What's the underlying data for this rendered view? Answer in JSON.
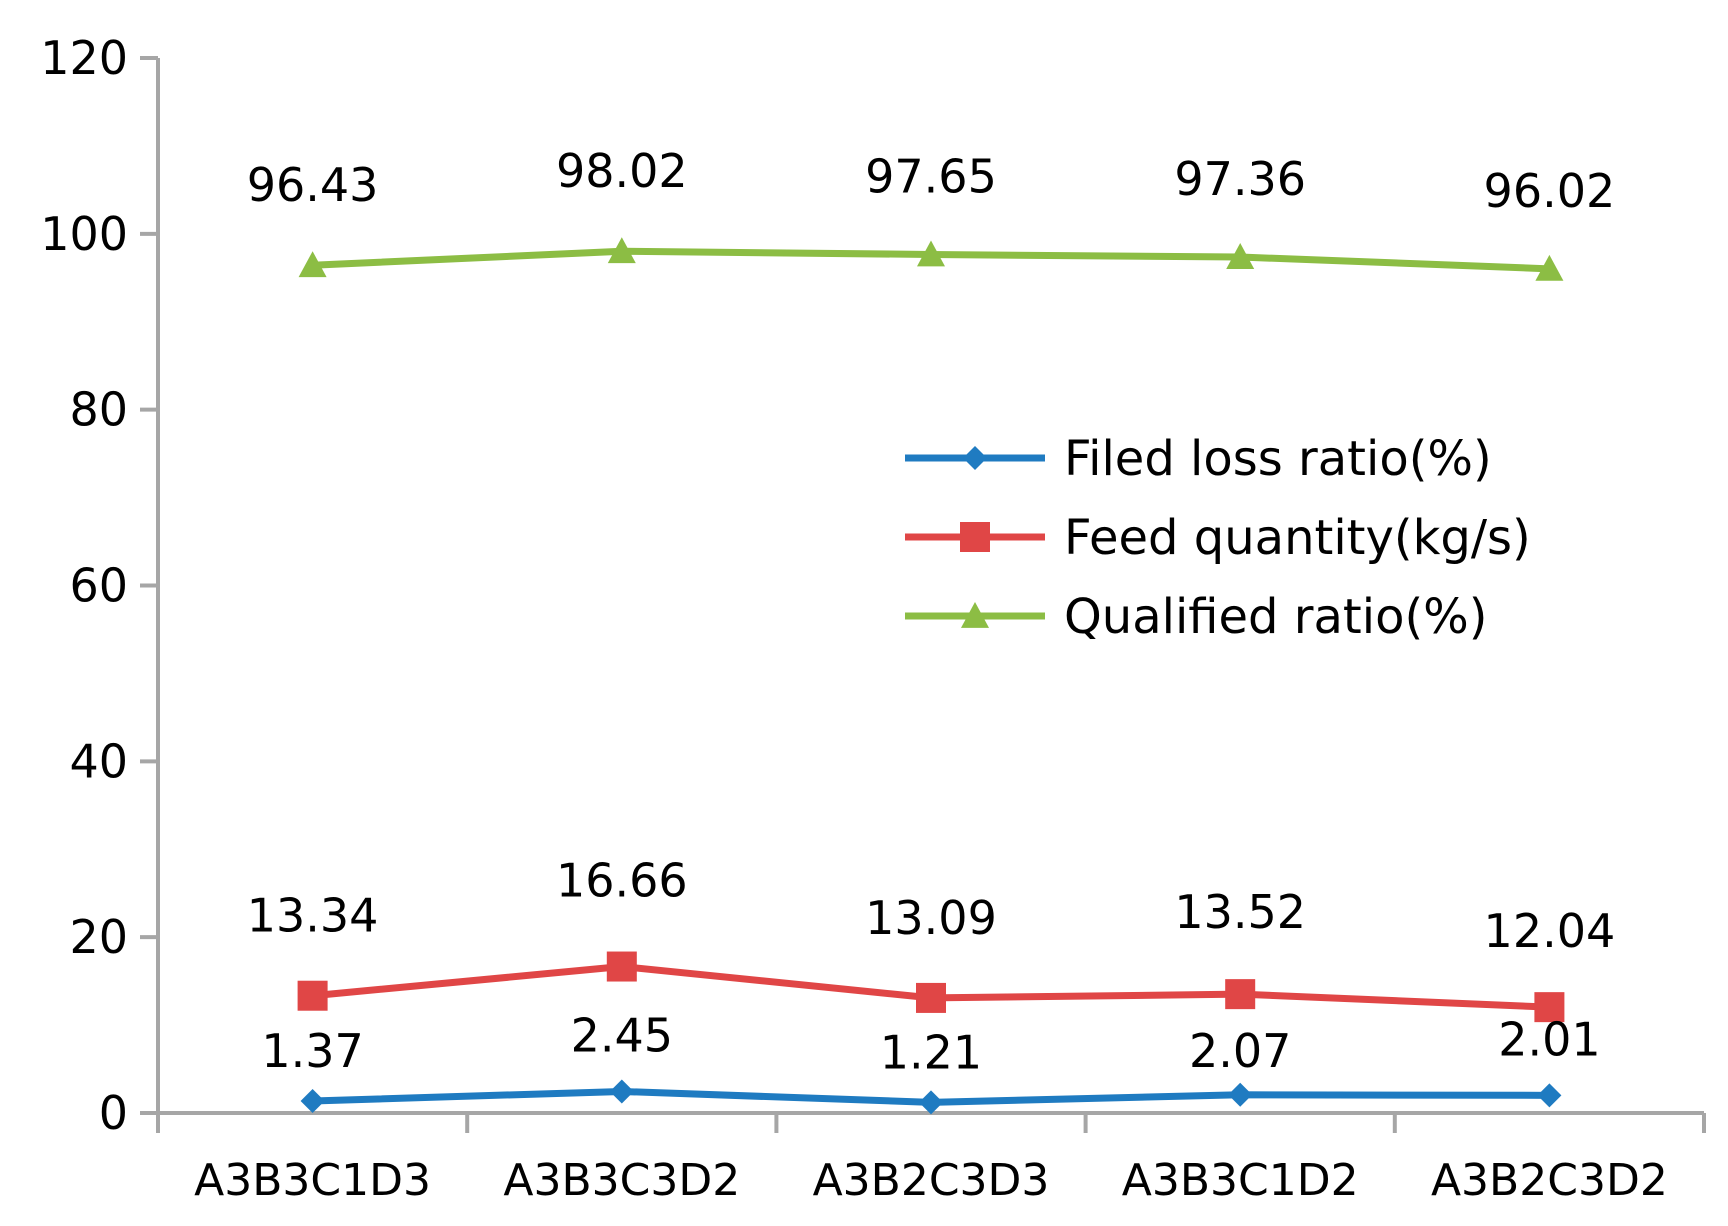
{
  "chart_data": {
    "type": "line",
    "title": "",
    "xlabel": "",
    "ylabel": "",
    "categories": [
      "A3B3C1D3",
      "A3B3C3D2",
      "A3B2C3D3",
      "A3B3C1D2",
      "A3B2C3D2"
    ],
    "ylim": [
      0,
      120
    ],
    "yticks": [
      0,
      20,
      40,
      60,
      80,
      100,
      120
    ],
    "grid": false,
    "legend_position": "center-right",
    "series": [
      {
        "name": "Filed loss ratio(%)",
        "marker": "diamond",
        "color": "#1f7bc1",
        "values": [
          1.37,
          2.45,
          1.21,
          2.07,
          2.01
        ],
        "labels": [
          "1.37",
          "2.45",
          "1.21",
          "2.07",
          "2.01"
        ]
      },
      {
        "name": "Feed quantity(kg/s)",
        "marker": "square",
        "color": "#e04646",
        "values": [
          13.34,
          16.66,
          13.09,
          13.52,
          12.04
        ],
        "labels": [
          "13.34",
          "16.66",
          "13.09",
          "13.52",
          "12.04"
        ]
      },
      {
        "name": "Qualified ratio(%)",
        "marker": "triangle",
        "color": "#8cbd44",
        "values": [
          96.43,
          98.02,
          97.65,
          97.36,
          96.02
        ],
        "labels": [
          "96.43",
          "98.02",
          "97.65",
          "97.36",
          "96.02"
        ]
      }
    ]
  }
}
